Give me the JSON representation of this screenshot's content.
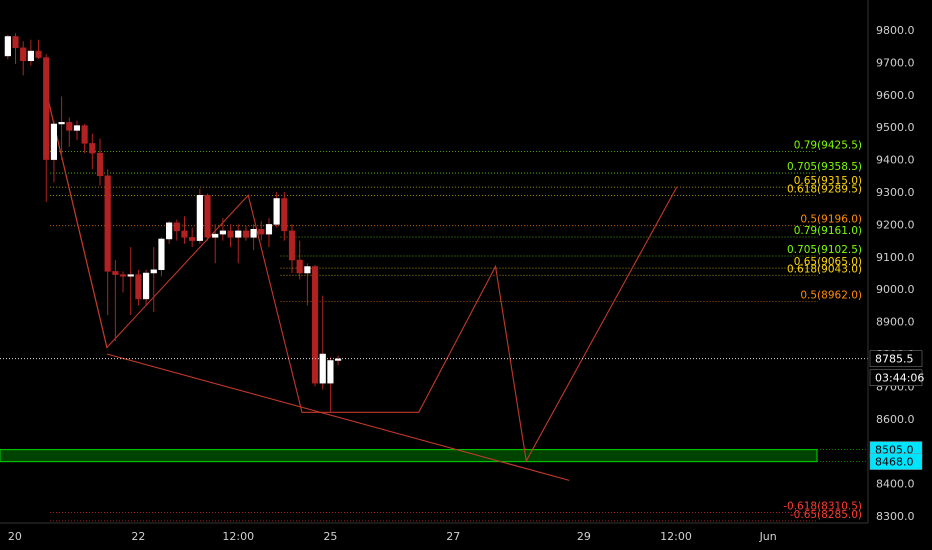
{
  "chart_data": {
    "type": "candlestick",
    "title": "",
    "xlabel": "",
    "ylabel": "",
    "ylim": [
      8285,
      9850
    ],
    "y_ticks": [
      8300,
      8400,
      8500,
      8600,
      8700,
      8800,
      8900,
      9000,
      9100,
      9200,
      9300,
      9400,
      9500,
      9600,
      9700,
      9800
    ],
    "y_tick_labels": [
      "8300.0",
      "8400.0",
      "8500.0",
      "8600.0",
      "8700.0",
      "8800.0",
      "8900.0",
      "9000.0",
      "9100.0",
      "9200.0",
      "9300.0",
      "9400.0",
      "9500.0",
      "9600.0",
      "9700.0",
      "9800.0"
    ],
    "x_ticks": [
      "20",
      "22",
      "12:00",
      "25",
      "27",
      "29",
      "12:00",
      "Jun"
    ],
    "x_tick_bar_index": [
      0,
      17,
      30,
      42,
      58,
      75,
      87,
      99
    ],
    "candles": [
      {
        "o": 9720,
        "h": 9785,
        "l": 9710,
        "c": 9780
      },
      {
        "o": 9780,
        "h": 9790,
        "l": 9695,
        "c": 9745
      },
      {
        "o": 9745,
        "h": 9765,
        "l": 9660,
        "c": 9705
      },
      {
        "o": 9705,
        "h": 9770,
        "l": 9690,
        "c": 9735
      },
      {
        "o": 9735,
        "h": 9770,
        "l": 9710,
        "c": 9715
      },
      {
        "o": 9715,
        "h": 9725,
        "l": 9270,
        "c": 9400
      },
      {
        "o": 9400,
        "h": 9520,
        "l": 9330,
        "c": 9510
      },
      {
        "o": 9510,
        "h": 9595,
        "l": 9400,
        "c": 9515
      },
      {
        "o": 9515,
        "h": 9530,
        "l": 9440,
        "c": 9490
      },
      {
        "o": 9490,
        "h": 9520,
        "l": 9460,
        "c": 9505
      },
      {
        "o": 9505,
        "h": 9510,
        "l": 9420,
        "c": 9450
      },
      {
        "o": 9450,
        "h": 9480,
        "l": 9370,
        "c": 9420
      },
      {
        "o": 9420,
        "h": 9465,
        "l": 9320,
        "c": 9350
      },
      {
        "o": 9350,
        "h": 9370,
        "l": 8920,
        "c": 9055
      },
      {
        "o": 9055,
        "h": 9090,
        "l": 8840,
        "c": 9045
      },
      {
        "o": 9045,
        "h": 9055,
        "l": 8990,
        "c": 9040
      },
      {
        "o": 9040,
        "h": 9130,
        "l": 8920,
        "c": 9045
      },
      {
        "o": 9045,
        "h": 9060,
        "l": 8950,
        "c": 8970
      },
      {
        "o": 8970,
        "h": 9060,
        "l": 8950,
        "c": 9050
      },
      {
        "o": 9050,
        "h": 9130,
        "l": 8930,
        "c": 9060
      },
      {
        "o": 9060,
        "h": 9160,
        "l": 9040,
        "c": 9155
      },
      {
        "o": 9155,
        "h": 9210,
        "l": 9140,
        "c": 9205
      },
      {
        "o": 9205,
        "h": 9215,
        "l": 9150,
        "c": 9180
      },
      {
        "o": 9180,
        "h": 9225,
        "l": 9140,
        "c": 9160
      },
      {
        "o": 9160,
        "h": 9190,
        "l": 9130,
        "c": 9150
      },
      {
        "o": 9150,
        "h": 9310,
        "l": 9140,
        "c": 9290
      },
      {
        "o": 9290,
        "h": 9295,
        "l": 9150,
        "c": 9160
      },
      {
        "o": 9160,
        "h": 9200,
        "l": 9080,
        "c": 9170
      },
      {
        "o": 9170,
        "h": 9220,
        "l": 9150,
        "c": 9180
      },
      {
        "o": 9180,
        "h": 9200,
        "l": 9130,
        "c": 9160
      },
      {
        "o": 9160,
        "h": 9200,
        "l": 9080,
        "c": 9180
      },
      {
        "o": 9180,
        "h": 9195,
        "l": 9150,
        "c": 9160
      },
      {
        "o": 9160,
        "h": 9200,
        "l": 9120,
        "c": 9185
      },
      {
        "o": 9185,
        "h": 9210,
        "l": 9150,
        "c": 9170
      },
      {
        "o": 9170,
        "h": 9220,
        "l": 9130,
        "c": 9200
      },
      {
        "o": 9200,
        "h": 9300,
        "l": 9190,
        "c": 9280
      },
      {
        "o": 9280,
        "h": 9300,
        "l": 9150,
        "c": 9180
      },
      {
        "o": 9180,
        "h": 9200,
        "l": 9050,
        "c": 9090
      },
      {
        "o": 9090,
        "h": 9150,
        "l": 9030,
        "c": 9050
      },
      {
        "o": 9050,
        "h": 9080,
        "l": 8950,
        "c": 9070
      },
      {
        "o": 9070,
        "h": 9075,
        "l": 8700,
        "c": 8710
      },
      {
        "o": 8710,
        "h": 8980,
        "l": 8690,
        "c": 8800
      },
      {
        "o": 8710,
        "h": 8790,
        "l": 8620,
        "c": 8780
      },
      {
        "o": 8780,
        "h": 8795,
        "l": 8765,
        "c": 8785
      }
    ],
    "last_price": {
      "value": 8785.5,
      "label": "8785.5",
      "countdown": "03:44:06"
    },
    "zone": {
      "high": 8505.0,
      "low": 8468.0,
      "label_high": "8505.0",
      "label_low": "8468.0"
    },
    "lines": [
      {
        "name": "pattern",
        "points": [
          [
            5.6,
            9600
          ],
          [
            13.4,
            8820
          ],
          [
            31.8,
            9290
          ],
          [
            38.8,
            8620
          ],
          [
            54,
            8620
          ],
          [
            64,
            9070
          ],
          [
            68,
            8470
          ],
          [
            87.6,
            9315
          ]
        ]
      },
      {
        "name": "trendline",
        "points": [
          [
            13.4,
            8800
          ],
          [
            73.6,
            8410
          ]
        ]
      },
      {
        "name": "up-line",
        "points": [
          [
            5.6,
            9600
          ],
          [
            13.4,
            8820
          ]
        ]
      }
    ],
    "fib_levels": [
      {
        "label": "0.79(9425.5)",
        "value": 9425.5,
        "color": "#7cfc00",
        "x_start": 6
      },
      {
        "label": "0.705(9358.5)",
        "value": 9358.5,
        "color": "#7cfc00",
        "x_start": 6
      },
      {
        "label": "0.65(9315.0)",
        "value": 9315.0,
        "color": "#ffd700",
        "x_start": 6
      },
      {
        "label": "0.618(9289.5)",
        "value": 9289.5,
        "color": "#ffd700",
        "x_start": 6
      },
      {
        "label": "0.5(9196.0)",
        "value": 9196.0,
        "color": "#ff8c00",
        "x_start": 6
      },
      {
        "label": "0.79(9161.0)",
        "value": 9161.0,
        "color": "#7cfc00",
        "x_start": 36
      },
      {
        "label": "0.705(9102.5)",
        "value": 9102.5,
        "color": "#7cfc00",
        "x_start": 36
      },
      {
        "label": "0.65(9065.0)",
        "value": 9065.0,
        "color": "#ffd700",
        "x_start": 36
      },
      {
        "label": "0.618(9043.0)",
        "value": 9043.0,
        "color": "#ffd700",
        "x_start": 36
      },
      {
        "label": "0.5(8962.0)",
        "value": 8962.0,
        "color": "#ff8c00",
        "x_start": 36
      },
      {
        "label": "-0.618(8310.5)",
        "value": 8310.5,
        "color": "#ff3b30",
        "x_start": 6
      },
      {
        "label": "-0.65(8285.0)",
        "value": 8285.0,
        "color": "#ff3b30",
        "x_start": 6
      }
    ],
    "colors": {
      "background": "#000000",
      "up": "#ffffff",
      "down": "#b22222",
      "wick": "#b22222",
      "zone": "#00c000",
      "pattern": "#c0392b",
      "axis_text": "#cfcfcf"
    },
    "grid": false,
    "legend": "none"
  }
}
